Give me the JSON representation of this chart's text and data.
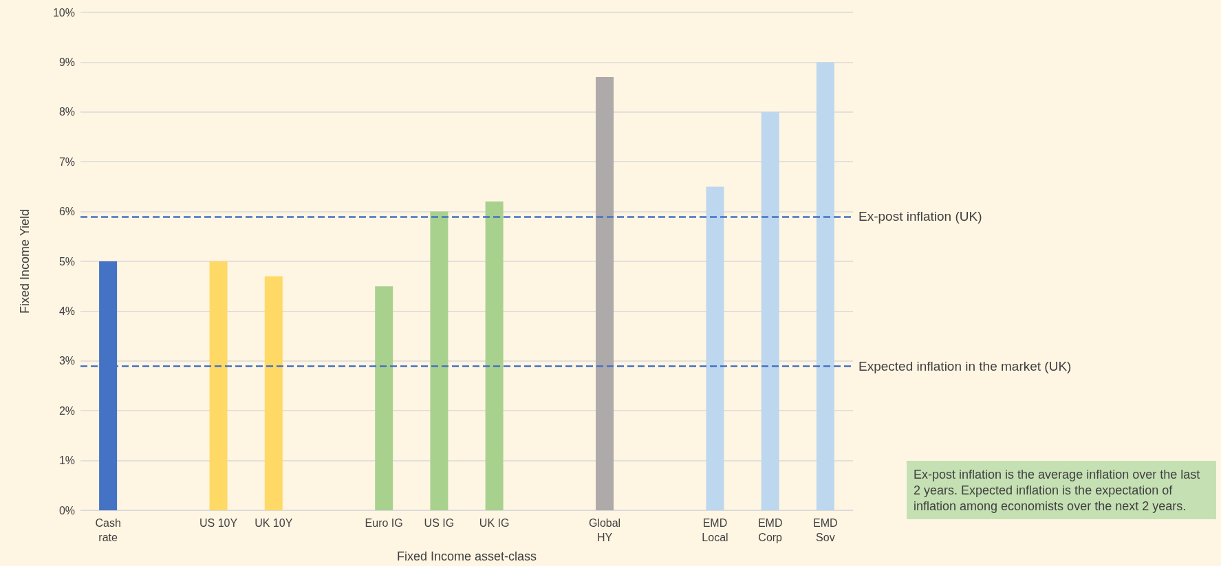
{
  "chart_data": {
    "type": "bar",
    "xlabel": "Fixed Income asset-class",
    "ylabel": "Fixed Income Yield",
    "categories": [
      "Cash\nrate",
      null,
      "US 10Y",
      "UK 10Y",
      null,
      "Euro IG",
      "US IG",
      "UK IG",
      null,
      "Global\nHY",
      null,
      "EMD\nLocal",
      "EMD\nCorp",
      "EMD\nSov"
    ],
    "values": [
      5,
      null,
      5,
      4.7,
      null,
      4.5,
      6,
      6.2,
      null,
      8.7,
      null,
      6.5,
      8,
      9
    ],
    "colors": [
      "#4472c4",
      null,
      "#ffd966",
      "#ffd966",
      null,
      "#a9d18e",
      "#a9d18e",
      "#a9d18e",
      null,
      "#aeaaaa",
      null,
      "#bdd7ee",
      "#bdd7ee",
      "#bdd7ee"
    ],
    "ylim": [
      0,
      10
    ],
    "yticks": [
      {
        "value": 0,
        "label": "0%"
      },
      {
        "value": 1,
        "label": "1%"
      },
      {
        "value": 2,
        "label": "2%"
      },
      {
        "value": 3,
        "label": "3%"
      },
      {
        "value": 4,
        "label": "4%"
      },
      {
        "value": 5,
        "label": "5%"
      },
      {
        "value": 6,
        "label": "6%"
      },
      {
        "value": 7,
        "label": "7%"
      },
      {
        "value": 8,
        "label": "8%"
      },
      {
        "value": 9,
        "label": "9%"
      },
      {
        "value": 10,
        "label": "10%"
      }
    ],
    "grid": "y",
    "ref_lines": [
      {
        "axis": "y",
        "value": 5.9,
        "label": "Ex-post inflation (UK)",
        "color": "#4472c4",
        "line_style": "dashed"
      },
      {
        "axis": "y",
        "value": 2.9,
        "label": "Expected inflation in the market (UK)",
        "color": "#4472c4",
        "line_style": "dashed"
      }
    ],
    "annotations": [
      "Ex-post inflation is the average inflation over the last 2 years. Expected inflation is the expectation of inflation among economists over the next 2 years."
    ]
  }
}
